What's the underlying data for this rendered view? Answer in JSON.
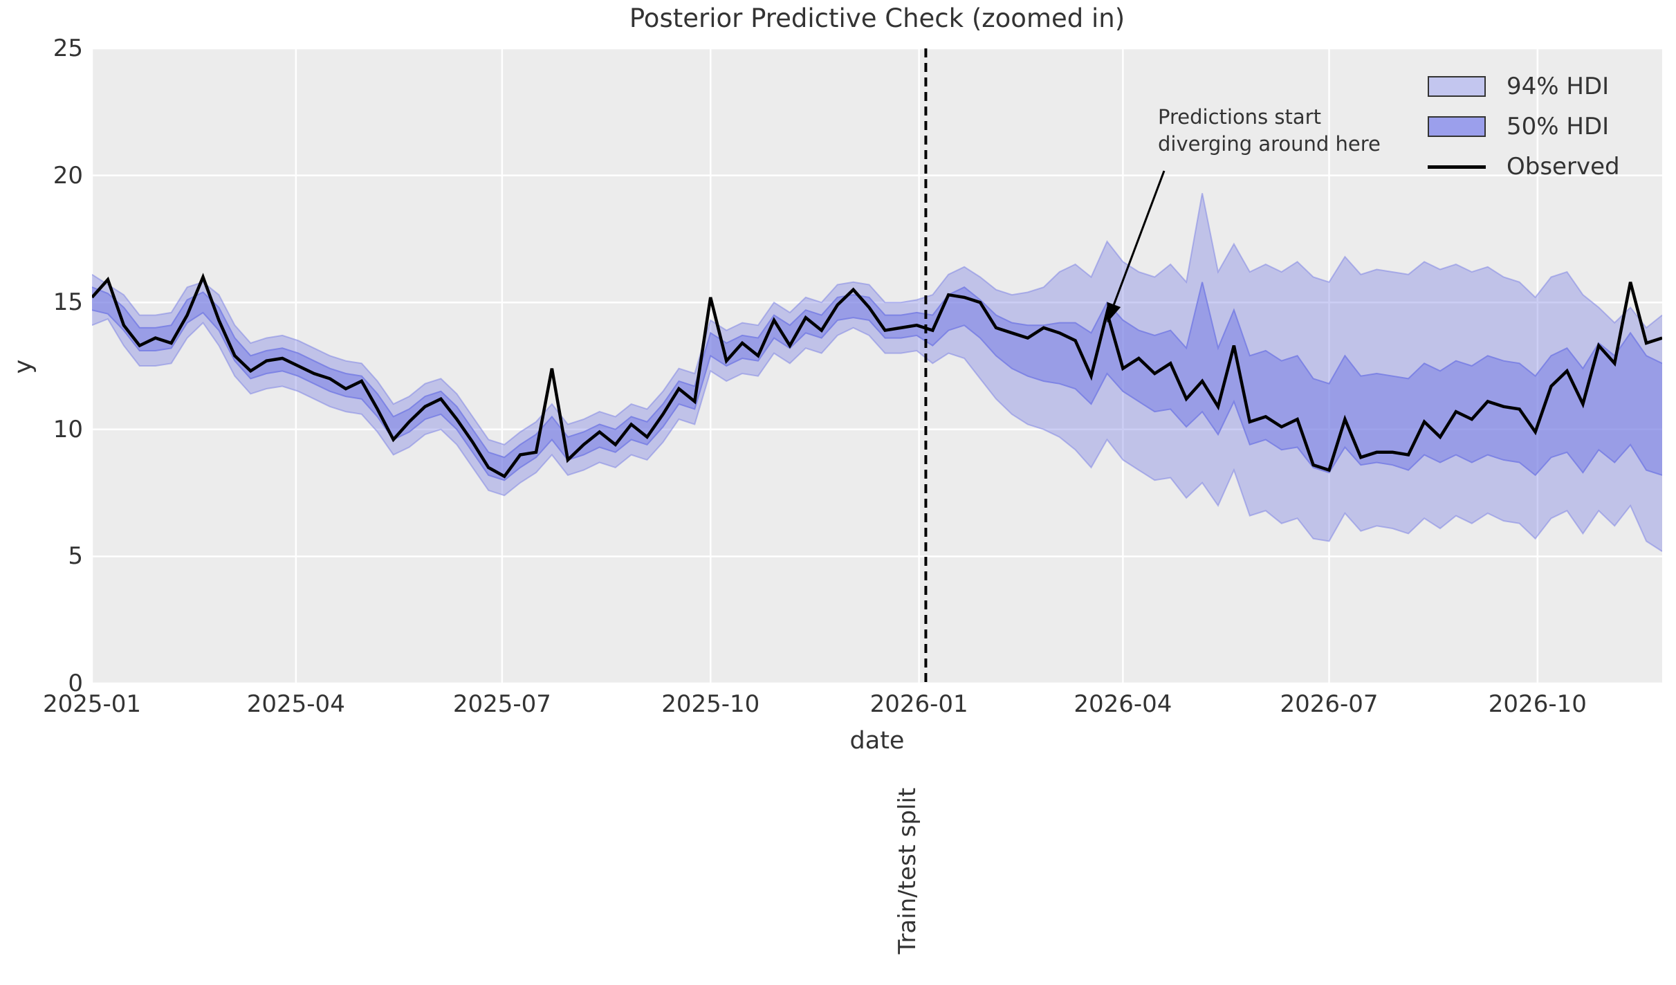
{
  "title": "Posterior Predictive Check (zoomed in)",
  "x_axis": {
    "label": "date",
    "ticks": [
      {
        "label": "2025-01",
        "date": "2025-01-01"
      },
      {
        "label": "2025-04",
        "date": "2025-04-01"
      },
      {
        "label": "2025-07",
        "date": "2025-07-01"
      },
      {
        "label": "2025-10",
        "date": "2025-10-01"
      },
      {
        "label": "2026-01",
        "date": "2026-01-01"
      },
      {
        "label": "2026-04",
        "date": "2026-04-01"
      },
      {
        "label": "2026-07",
        "date": "2026-07-01"
      },
      {
        "label": "2026-10",
        "date": "2026-10-01"
      }
    ]
  },
  "y_axis": {
    "label": "y",
    "ticks": [
      0,
      5,
      10,
      15,
      20,
      25
    ]
  },
  "legend": {
    "items": [
      {
        "label": "94% HDI",
        "swatch": "band-94"
      },
      {
        "label": "50% HDI",
        "swatch": "band-50"
      },
      {
        "label": "Observed",
        "swatch": "line"
      }
    ]
  },
  "annotation": {
    "line1": "Predictions start",
    "line2": "diverging around here",
    "arrow_tip_date": "2026-03-25",
    "arrow_tip_value": 14.2
  },
  "split": {
    "label": "Train/test split",
    "date": "2026-01-04"
  },
  "colors": {
    "plot_bg": "#ececec",
    "grid": "#ffffff",
    "band_base": "#797fe3",
    "band_94_fill_alpha": 0.38,
    "band_50_fill_alpha": 0.55,
    "observed": "#000000",
    "split_line": "#000000",
    "text": "#333333"
  },
  "chart_data": {
    "type": "line",
    "title": "Posterior Predictive Check (zoomed in)",
    "xlabel": "date",
    "ylabel": "y",
    "ylim": [
      0,
      25
    ],
    "x_domain": [
      "2025-01-01",
      "2026-11-25"
    ],
    "start_date": "2025-01-01",
    "freq_days": 7,
    "split_date": "2026-01-04",
    "grid": true,
    "legend_position": "upper right",
    "observed": [
      15.2,
      15.9,
      14.1,
      13.3,
      13.6,
      13.4,
      14.5,
      16.0,
      14.3,
      12.9,
      12.3,
      12.7,
      12.8,
      12.5,
      12.2,
      12.0,
      11.6,
      11.9,
      10.8,
      9.6,
      10.3,
      10.9,
      11.2,
      10.4,
      9.5,
      8.5,
      8.15,
      9.0,
      9.1,
      12.4,
      8.8,
      9.4,
      9.9,
      9.4,
      10.2,
      9.7,
      10.6,
      11.6,
      11.1,
      15.2,
      12.7,
      13.4,
      12.9,
      14.3,
      13.3,
      14.4,
      13.9,
      14.9,
      15.5,
      14.8,
      13.9,
      14.0,
      14.1,
      13.9,
      15.3,
      15.2,
      15.0,
      14.0,
      13.8,
      13.6,
      14.0,
      13.8,
      13.5,
      12.1,
      14.6,
      12.4,
      12.8,
      12.2,
      12.6,
      11.2,
      11.9,
      10.9,
      13.3,
      10.3,
      10.5,
      10.1,
      10.4,
      8.6,
      8.4,
      10.4,
      8.9,
      9.1,
      9.1,
      9.0,
      10.3,
      9.7,
      10.7,
      10.4,
      11.1,
      10.9,
      10.8,
      9.9,
      11.7,
      12.3,
      11.0,
      13.3,
      12.6,
      15.8,
      13.4,
      13.6
    ],
    "hdi50_high": [
      15.6,
      15.35,
      14.8,
      14.0,
      14.0,
      14.1,
      15.1,
      15.4,
      14.8,
      13.6,
      12.9,
      13.1,
      13.2,
      13.0,
      12.7,
      12.4,
      12.2,
      12.1,
      11.4,
      10.5,
      10.8,
      11.3,
      11.5,
      10.9,
      10.0,
      9.1,
      8.9,
      9.4,
      9.8,
      10.5,
      9.7,
      9.9,
      10.2,
      10.0,
      10.5,
      10.3,
      11.0,
      11.9,
      11.7,
      13.8,
      13.4,
      13.7,
      13.6,
      14.5,
      14.1,
      14.7,
      14.5,
      15.2,
      15.3,
      15.2,
      14.5,
      14.5,
      14.6,
      14.5,
      15.3,
      15.6,
      15.1,
      14.5,
      14.2,
      14.1,
      14.1,
      14.2,
      14.2,
      13.8,
      15.0,
      14.3,
      13.9,
      13.7,
      13.9,
      13.2,
      15.8,
      13.2,
      14.7,
      12.9,
      13.1,
      12.7,
      12.9,
      12.0,
      11.8,
      12.9,
      12.1,
      12.2,
      12.1,
      12.0,
      12.6,
      12.3,
      12.7,
      12.5,
      12.9,
      12.7,
      12.6,
      12.1,
      12.9,
      13.2,
      12.4,
      13.4,
      12.9,
      13.8,
      12.9,
      12.6
    ],
    "hdi50_low": [
      14.7,
      14.55,
      13.9,
      13.1,
      13.1,
      13.2,
      14.2,
      14.6,
      13.9,
      12.7,
      12.0,
      12.2,
      12.3,
      12.1,
      11.8,
      11.5,
      11.3,
      11.2,
      10.5,
      9.6,
      9.9,
      10.4,
      10.6,
      10.0,
      9.1,
      8.2,
      8.0,
      8.5,
      8.9,
      9.6,
      8.8,
      9.0,
      9.3,
      9.1,
      9.6,
      9.4,
      10.1,
      11.0,
      10.8,
      12.9,
      12.5,
      12.8,
      12.7,
      13.6,
      13.2,
      13.8,
      13.6,
      14.3,
      14.4,
      14.3,
      13.6,
      13.6,
      13.7,
      13.3,
      13.9,
      14.1,
      13.6,
      12.9,
      12.4,
      12.1,
      11.9,
      11.8,
      11.6,
      11.0,
      12.2,
      11.5,
      11.1,
      10.7,
      10.8,
      10.1,
      10.7,
      9.8,
      11.1,
      9.4,
      9.6,
      9.2,
      9.3,
      8.5,
      8.3,
      9.3,
      8.6,
      8.7,
      8.6,
      8.4,
      9.0,
      8.7,
      9.0,
      8.7,
      9.0,
      8.8,
      8.7,
      8.2,
      8.9,
      9.1,
      8.3,
      9.2,
      8.7,
      9.4,
      8.4,
      8.2
    ],
    "hdi94_high": [
      16.1,
      15.7,
      15.3,
      14.5,
      14.5,
      14.6,
      15.6,
      15.8,
      15.3,
      14.1,
      13.4,
      13.6,
      13.7,
      13.5,
      13.2,
      12.9,
      12.7,
      12.6,
      11.9,
      11.0,
      11.3,
      11.8,
      12.0,
      11.4,
      10.5,
      9.6,
      9.4,
      9.9,
      10.3,
      11.0,
      10.2,
      10.4,
      10.7,
      10.5,
      11.0,
      10.8,
      11.5,
      12.4,
      12.2,
      14.3,
      13.9,
      14.2,
      14.1,
      15.0,
      14.6,
      15.2,
      15.0,
      15.7,
      15.8,
      15.7,
      15.0,
      15.0,
      15.1,
      15.3,
      16.1,
      16.4,
      16.0,
      15.5,
      15.3,
      15.4,
      15.6,
      16.2,
      16.5,
      16.0,
      17.4,
      16.6,
      16.2,
      16.0,
      16.5,
      15.8,
      19.3,
      16.2,
      17.3,
      16.2,
      16.5,
      16.2,
      16.6,
      16.0,
      15.8,
      16.8,
      16.1,
      16.3,
      16.2,
      16.1,
      16.6,
      16.3,
      16.5,
      16.2,
      16.4,
      16.0,
      15.8,
      15.2,
      16.0,
      16.2,
      15.3,
      14.8,
      14.2,
      14.8,
      14.0,
      14.5
    ],
    "hdi94_low": [
      14.1,
      14.35,
      13.3,
      12.5,
      12.5,
      12.6,
      13.6,
      14.2,
      13.3,
      12.1,
      11.4,
      11.6,
      11.7,
      11.5,
      11.2,
      10.9,
      10.7,
      10.6,
      9.9,
      9.0,
      9.3,
      9.8,
      10.0,
      9.4,
      8.5,
      7.6,
      7.4,
      7.9,
      8.3,
      9.0,
      8.2,
      8.4,
      8.7,
      8.5,
      9.0,
      8.8,
      9.5,
      10.4,
      10.2,
      12.3,
      11.9,
      12.2,
      12.1,
      13.0,
      12.6,
      13.2,
      13.0,
      13.7,
      14.0,
      13.7,
      13.0,
      13.0,
      13.1,
      12.6,
      13.0,
      12.8,
      12.0,
      11.2,
      10.6,
      10.2,
      10.0,
      9.7,
      9.2,
      8.5,
      9.6,
      8.8,
      8.4,
      8.0,
      8.1,
      7.3,
      7.9,
      7.0,
      8.4,
      6.6,
      6.8,
      6.3,
      6.5,
      5.7,
      5.6,
      6.7,
      6.0,
      6.2,
      6.1,
      5.9,
      6.5,
      6.1,
      6.6,
      6.3,
      6.7,
      6.4,
      6.3,
      5.7,
      6.5,
      6.8,
      5.9,
      6.8,
      6.2,
      7.0,
      5.6,
      5.2
    ]
  }
}
